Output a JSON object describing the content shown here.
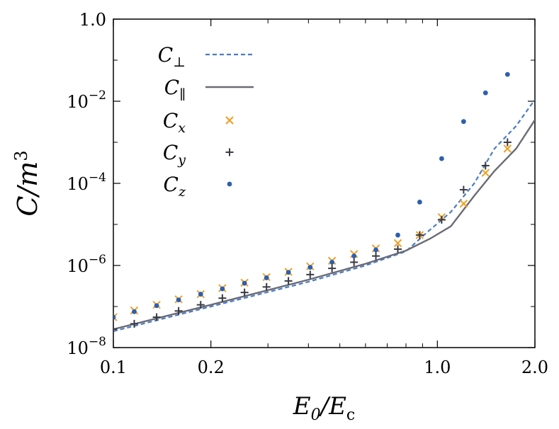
{
  "chart_data": {
    "type": "line",
    "xscale": "log",
    "yscale": "log",
    "xlim": [
      0.1,
      2.0
    ],
    "ylim": [
      1e-08,
      1.0
    ],
    "xlabel": "E0/Ec",
    "ylabel": "C/m³",
    "x_ticks": [
      {
        "value": 0.1,
        "label": "0.1"
      },
      {
        "value": 0.2,
        "label": "0.2"
      },
      {
        "value": 1.0,
        "label": "1.0"
      },
      {
        "value": 2.0,
        "label": "2.0"
      }
    ],
    "x_minor_ticks": [
      0.3,
      0.4,
      0.5,
      0.6,
      0.7,
      0.8,
      0.9
    ],
    "y_ticks": [
      {
        "value": 1e-08,
        "label": "10^-8",
        "mant": "10",
        "exp": "−8"
      },
      {
        "value": 1e-06,
        "label": "10^-6",
        "mant": "10",
        "exp": "−6"
      },
      {
        "value": 0.0001,
        "label": "10^-4",
        "mant": "10",
        "exp": "−4"
      },
      {
        "value": 0.01,
        "label": "10^-2",
        "mant": "10",
        "exp": "−2"
      },
      {
        "value": 1.0,
        "label": "1.0",
        "mant": "1.0",
        "exp": ""
      }
    ],
    "y_minor_ticks": [
      1e-07,
      1e-05,
      0.001,
      0.1
    ],
    "legend_position": "top-left",
    "series": [
      {
        "name": "C⊥",
        "style": "dashed-line",
        "color": "#4a7cc4",
        "x": [
          0.1,
          0.2,
          0.4,
          0.6,
          0.8,
          0.92,
          1.1,
          1.3,
          1.5,
          1.75,
          2.0
        ],
        "y": [
          2.5e-08,
          1e-07,
          4e-07,
          1e-06,
          2.2e-06,
          6e-06,
          2e-05,
          0.0001,
          0.0007,
          0.0025,
          0.011
        ]
      },
      {
        "name": "C∥",
        "style": "solid-line",
        "color": "#6b6b76",
        "x": [
          0.1,
          0.2,
          0.4,
          0.6,
          0.8,
          0.95,
          1.1,
          1.3,
          1.5,
          1.75,
          2.0
        ],
        "y": [
          2.8e-08,
          1.1e-07,
          4.5e-07,
          1.1e-06,
          2.3e-06,
          4.5e-06,
          9e-06,
          5e-05,
          0.0002,
          0.0007,
          0.0035
        ]
      },
      {
        "name": "Cx",
        "style": "x-marker",
        "color": "#f0a020",
        "x": [
          0.1,
          0.116,
          0.136,
          0.159,
          0.186,
          0.217,
          0.254,
          0.297,
          0.347,
          0.405,
          0.473,
          0.553,
          0.646,
          0.755,
          0.882,
          1.031,
          1.205,
          1.408,
          1.646
        ],
        "y": [
          5.5e-08,
          8e-08,
          1.1e-07,
          1.5e-07,
          2e-07,
          2.8e-07,
          3.8e-07,
          5.2e-07,
          7e-07,
          9.5e-07,
          1.3e-06,
          1.9e-06,
          2.6e-06,
          3.5e-06,
          5.5e-06,
          1.5e-05,
          3.2e-05,
          0.00018,
          0.0007
        ]
      },
      {
        "name": "Cy",
        "style": "plus-marker",
        "color": "#3a3a44",
        "x": [
          0.1,
          0.116,
          0.136,
          0.159,
          0.186,
          0.217,
          0.254,
          0.297,
          0.347,
          0.405,
          0.473,
          0.553,
          0.646,
          0.755,
          0.882,
          1.031,
          1.205,
          1.408,
          1.646
        ],
        "y": [
          2.8e-08,
          3.8e-08,
          5.5e-08,
          7.8e-08,
          1.1e-07,
          1.6e-07,
          2.2e-07,
          3e-07,
          4.2e-07,
          6e-07,
          8.5e-07,
          1.2e-06,
          1.7e-06,
          2.5e-06,
          5.5e-06,
          1.3e-05,
          7e-05,
          0.00027,
          0.001
        ]
      },
      {
        "name": "Cz",
        "style": "dot-marker",
        "color": "#2d5fb0",
        "x": [
          0.1,
          0.116,
          0.136,
          0.159,
          0.186,
          0.217,
          0.254,
          0.297,
          0.347,
          0.405,
          0.473,
          0.553,
          0.646,
          0.755,
          0.882,
          1.031,
          1.205,
          1.408,
          1.646
        ],
        "y": [
          5.5e-08,
          7.5e-08,
          1.05e-07,
          1.45e-07,
          2e-07,
          2.7e-07,
          3.7e-07,
          5e-07,
          6.8e-07,
          9e-07,
          1.2e-06,
          1.7e-06,
          2.4e-06,
          5.5e-06,
          3.5e-05,
          0.0004,
          0.0032,
          0.016,
          0.045
        ]
      }
    ]
  }
}
